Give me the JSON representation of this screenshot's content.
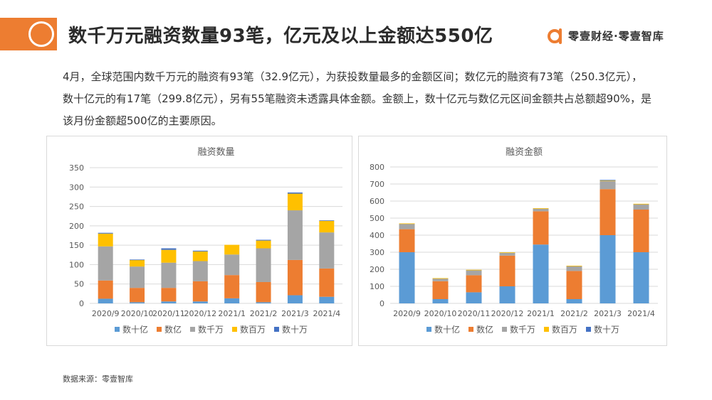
{
  "header": {
    "title": "数千万元融资数量93笔，亿元及以上金额达550亿",
    "logo_text": "零壹财经·零壹智库",
    "accent_color": "#ed7d31"
  },
  "summary": "4月，全球范围内数千万元的融资有93笔（32.9亿元），为获投数量最多的金额区间；数亿元的融资有73笔（250.3亿元），数十亿元的有17笔（299.8亿元），另有55笔融资未透露具体金额。金额上，数十亿元与数亿元区间金额共占总额超90%，是该月份金额超500亿的主要原因。",
  "source": "数据来源：零壹智库",
  "chart_data": [
    {
      "type": "bar",
      "stacked": true,
      "title": "融资数量",
      "categories": [
        "2020/9",
        "2020/10",
        "2020/11",
        "2020/12",
        "2021/1",
        "2021/2",
        "2021/3",
        "2021/4"
      ],
      "series": [
        {
          "name": "数十亿",
          "color": "#5b9bd5",
          "values": [
            12,
            3,
            5,
            5,
            13,
            3,
            21,
            17
          ]
        },
        {
          "name": "数亿",
          "color": "#ed7d31",
          "values": [
            47,
            37,
            35,
            52,
            60,
            52,
            91,
            73
          ]
        },
        {
          "name": "数千万",
          "color": "#a5a5a5",
          "values": [
            88,
            55,
            65,
            52,
            53,
            87,
            128,
            93
          ]
        },
        {
          "name": "数百万",
          "color": "#ffc000",
          "values": [
            33,
            17,
            33,
            25,
            25,
            20,
            43,
            30
          ]
        },
        {
          "name": "数十万",
          "color": "#4472c4",
          "values": [
            2,
            1,
            4,
            2,
            0,
            2,
            3,
            1
          ]
        }
      ],
      "ylim": [
        0,
        350
      ],
      "yticks": [
        0,
        50,
        100,
        150,
        200,
        250,
        300,
        350
      ],
      "grid": true,
      "legend": "bottom"
    },
    {
      "type": "bar",
      "stacked": true,
      "title": "融资金额",
      "categories": [
        "2020/9",
        "2020/10",
        "2020/11",
        "2020/12",
        "2021/1",
        "2021/2",
        "2021/3",
        "2021/4"
      ],
      "series": [
        {
          "name": "数十亿",
          "color": "#5b9bd5",
          "values": [
            300,
            25,
            65,
            100,
            345,
            25,
            400,
            300
          ]
        },
        {
          "name": "数亿",
          "color": "#ed7d31",
          "values": [
            135,
            105,
            100,
            180,
            195,
            165,
            270,
            250
          ]
        },
        {
          "name": "数千万",
          "color": "#a5a5a5",
          "values": [
            32,
            17,
            30,
            18,
            17,
            30,
            48,
            33
          ]
        },
        {
          "name": "数百万",
          "color": "#ffc000",
          "values": [
            2,
            1,
            2,
            1,
            1,
            1,
            2,
            1
          ]
        },
        {
          "name": "数十万",
          "color": "#4472c4",
          "values": [
            0,
            0,
            0,
            0,
            0,
            0,
            4,
            0
          ]
        }
      ],
      "ylim": [
        0,
        800
      ],
      "yticks": [
        0,
        100,
        200,
        300,
        400,
        500,
        600,
        700,
        800
      ],
      "grid": true,
      "legend": "bottom"
    }
  ]
}
